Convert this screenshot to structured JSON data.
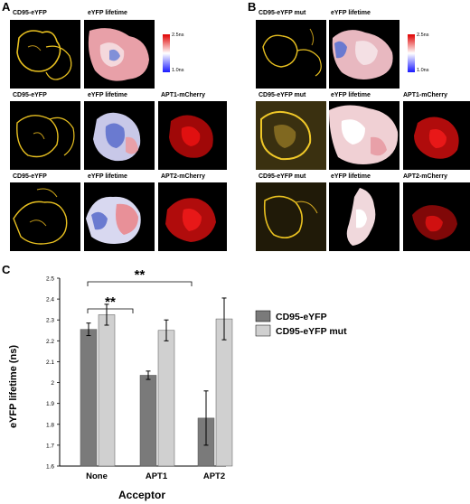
{
  "panels": {
    "A": {
      "letter": "A",
      "rows": [
        {
          "donor": "CD95-eYFP",
          "lifetime": "eYFP lifetime",
          "acceptor": ""
        },
        {
          "donor": "CD95-eYFP",
          "lifetime": "eYFP lifetime",
          "acceptor": "APT1-mCherry"
        },
        {
          "donor": "CD95-eYFP",
          "lifetime": "eYFP lifetime",
          "acceptor": "APT2-mCherry"
        }
      ],
      "scale_max": "2.5ns",
      "scale_min": "1.0ns"
    },
    "B": {
      "letter": "B",
      "rows": [
        {
          "donor": "CD95-eYFP mut",
          "lifetime": "eYFP lifetime",
          "acceptor": ""
        },
        {
          "donor": "CD95-eYFP mut",
          "lifetime": "eYFP lifetime",
          "acceptor": "APT1-mCherry"
        },
        {
          "donor": "CD95-eYFP mut",
          "lifetime": "eYFP lifetime",
          "acceptor": "APT2-mCherry"
        }
      ],
      "scale_max": "2.5ns",
      "scale_min": "1.0ns"
    }
  },
  "colors": {
    "yfp": "#e8c020",
    "mcherry": "#e01010",
    "series1": "#7a7a7a",
    "series2": "#d0d0d0"
  },
  "chart_data": {
    "panel_letter": "C",
    "type": "bar",
    "categories": [
      "None",
      "APT1",
      "APT2"
    ],
    "series": [
      {
        "name": "CD95-eYFP",
        "values": [
          2.255,
          2.035,
          1.83
        ],
        "errors": [
          0.03,
          0.02,
          0.13
        ]
      },
      {
        "name": "CD95-eYFP mut",
        "values": [
          2.325,
          2.25,
          2.305
        ],
        "errors": [
          0.05,
          0.05,
          0.1
        ]
      }
    ],
    "xlabel": "Acceptor",
    "ylabel": "eYFP lifetime (ns)",
    "ylim": [
      1.6,
      2.5
    ],
    "yticks": [
      "1.6",
      "1.7",
      "1.8",
      "1.9",
      "2",
      "2.1",
      "2.2",
      "2.3",
      "2.4",
      "2.5"
    ],
    "legend_position": "right",
    "annotations": [
      {
        "text": "**",
        "from": "None",
        "to": "APT1"
      },
      {
        "text": "**",
        "from": "None",
        "to": "APT2"
      }
    ]
  }
}
